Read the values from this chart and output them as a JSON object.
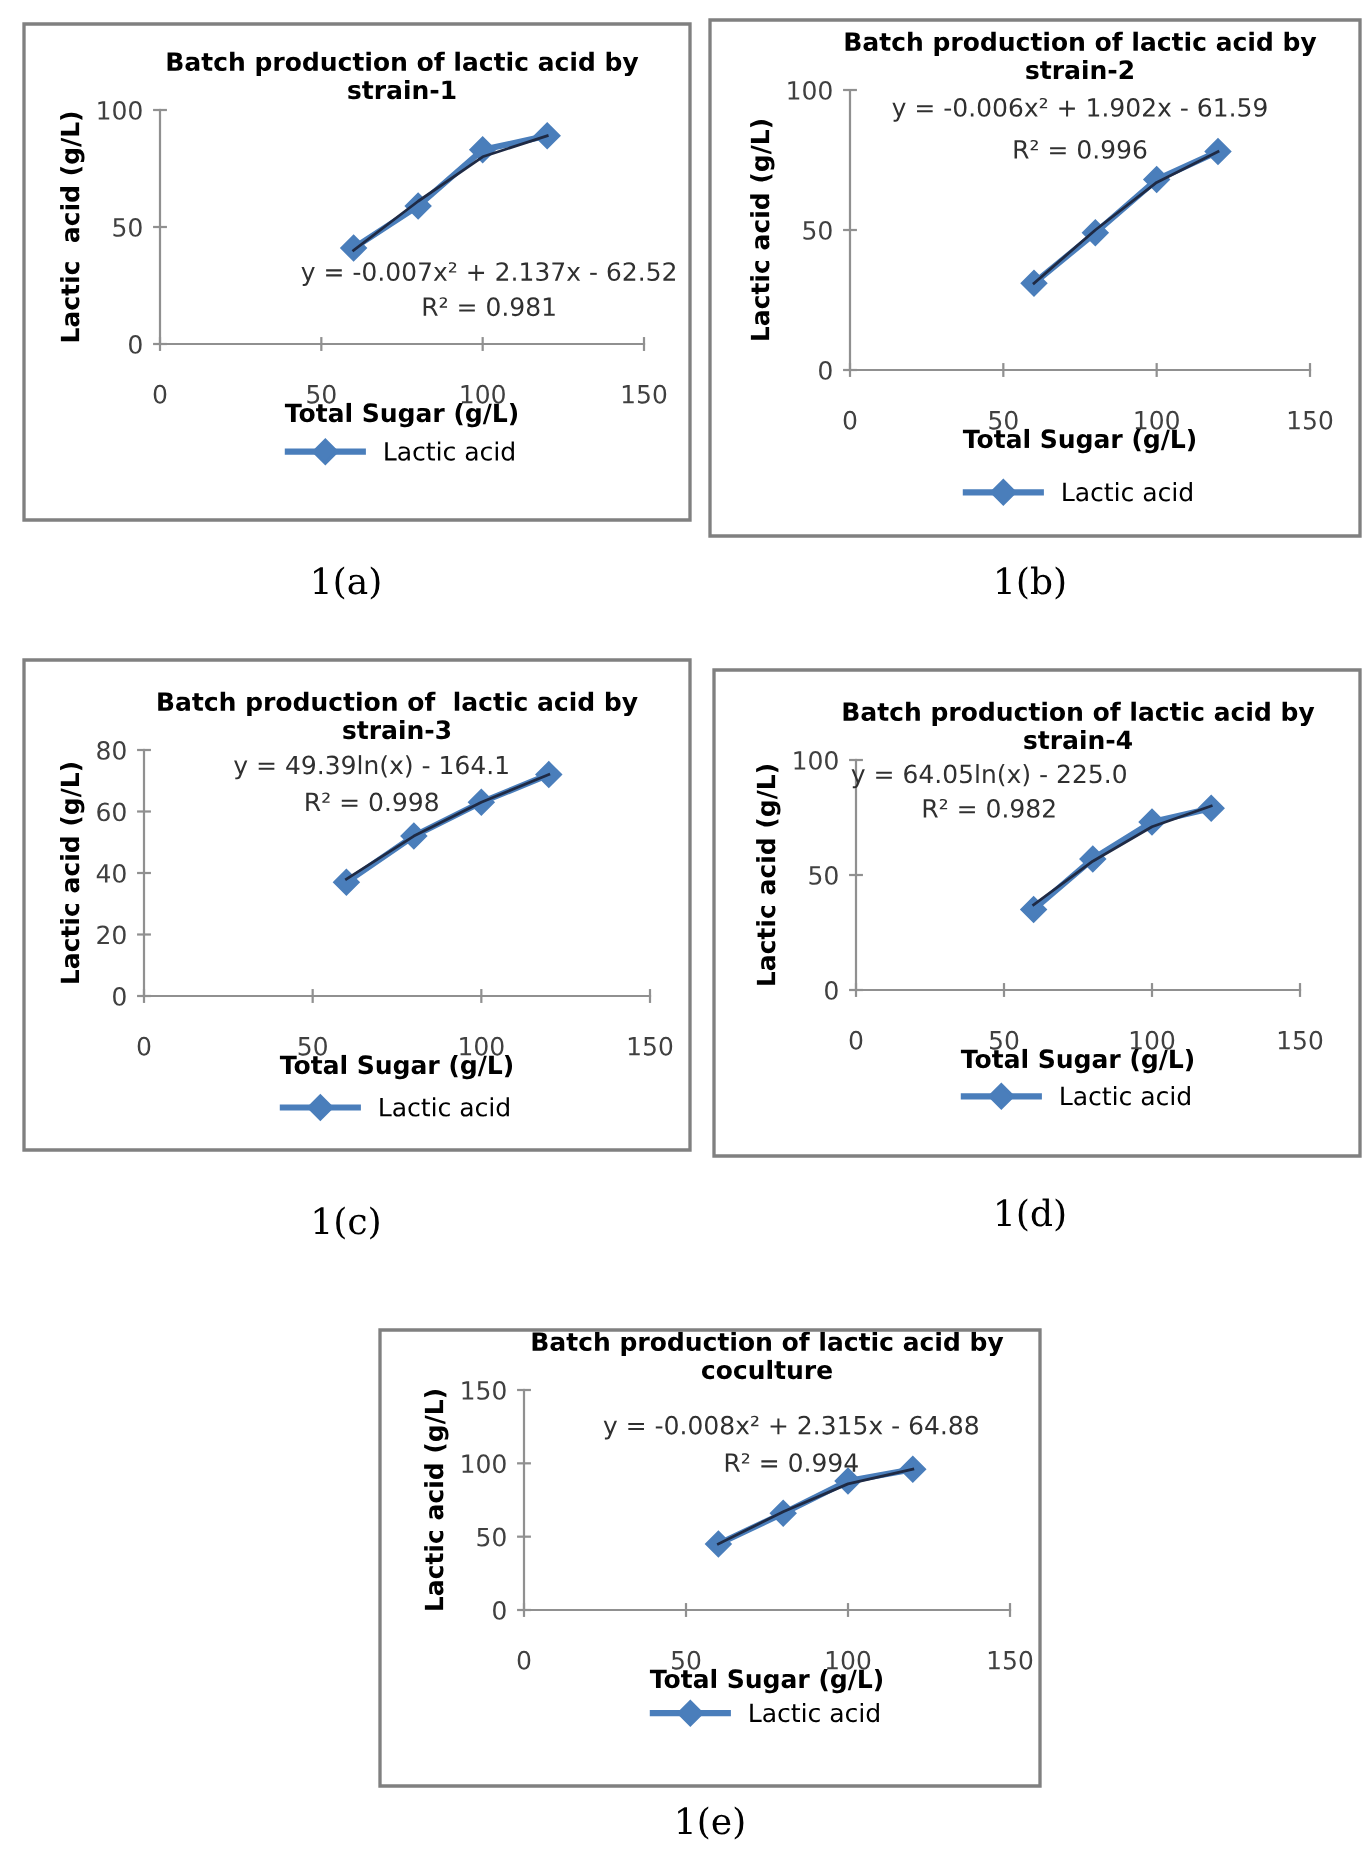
{
  "chart_data": [
    {
      "type": "line",
      "title": "Batch production of lactic acid by\nstrain-1",
      "xlabel": "Total Sugar (g/L)",
      "ylabel": "Lactic  acid (g/L)",
      "xlim": [
        0,
        150
      ],
      "xticks": [
        0,
        50,
        100,
        150
      ],
      "ylim": [
        0,
        100
      ],
      "yticks": [
        0,
        50,
        100
      ],
      "grid": false,
      "legend": "bottom",
      "annotations": [
        "y = -0.007x² + 2.137x - 62.52",
        "R² = 0.981",
        "1(a)"
      ],
      "series": [
        {
          "name": "Lactic acid",
          "color": "#4a7ebb",
          "marker": "diamond",
          "x": [
            60,
            80,
            100,
            120
          ],
          "values": [
            41,
            59,
            83,
            89
          ]
        },
        {
          "type": "line",
          "color": "#1f2a44",
          "marker": "none",
          "x": [
            60,
            80,
            100,
            120
          ],
          "values": [
            40,
            61,
            80,
            89
          ]
        }
      ]
    },
    {
      "type": "line",
      "title": "Batch production of lactic acid by\nstrain-2",
      "xlabel": "Total Sugar (g/L)",
      "ylabel": "Lactic acid (g/L)",
      "xlim": [
        0,
        150
      ],
      "xticks": [
        0,
        50,
        100,
        150
      ],
      "ylim": [
        0,
        100
      ],
      "yticks": [
        0,
        50,
        100
      ],
      "grid": false,
      "legend": "bottom",
      "annotations": [
        "y = -0.006x² + 1.902x - 61.59",
        "R² = 0.996",
        "1(b)"
      ],
      "series": [
        {
          "name": "Lactic acid",
          "color": "#4a7ebb",
          "marker": "diamond",
          "x": [
            60,
            80,
            100,
            120
          ],
          "values": [
            31,
            49,
            68,
            78
          ]
        },
        {
          "type": "line",
          "color": "#1f2a44",
          "marker": "none",
          "x": [
            60,
            80,
            100,
            120
          ],
          "values": [
            31,
            50,
            67,
            78
          ]
        }
      ]
    },
    {
      "type": "line",
      "title": "Batch production of  lactic acid by\nstrain-3",
      "xlabel": "Total Sugar (g/L)",
      "ylabel": "Lactic acid (g/L)",
      "xlim": [
        0,
        150
      ],
      "xticks": [
        0,
        50,
        100,
        150
      ],
      "ylim": [
        0,
        80
      ],
      "yticks": [
        0,
        20,
        40,
        60,
        80
      ],
      "grid": false,
      "legend": "bottom",
      "annotations": [
        "y = 49.39ln(x) - 164.1",
        "R² = 0.998",
        "1(c)"
      ],
      "series": [
        {
          "name": "Lactic acid",
          "color": "#4a7ebb",
          "marker": "diamond",
          "x": [
            60,
            80,
            100,
            120
          ],
          "values": [
            37,
            52,
            63,
            72
          ]
        },
        {
          "type": "line",
          "color": "#1f2a44",
          "marker": "none",
          "x": [
            60,
            80,
            100,
            120
          ],
          "values": [
            38,
            52,
            63,
            72
          ]
        }
      ]
    },
    {
      "type": "line",
      "title": "Batch production of lactic acid by\nstrain-4",
      "xlabel": "Total Sugar (g/L)",
      "ylabel": "Lactic acid (g/L)",
      "xlim": [
        0,
        150
      ],
      "xticks": [
        0,
        50,
        100,
        150
      ],
      "ylim": [
        0,
        100
      ],
      "yticks": [
        0,
        50,
        100
      ],
      "grid": false,
      "legend": "bottom",
      "annotations": [
        "y = 64.05ln(x) - 225.0",
        "R² = 0.982",
        "1(d)"
      ],
      "series": [
        {
          "name": "Lactic acid",
          "color": "#4a7ebb",
          "marker": "diamond",
          "x": [
            60,
            80,
            100,
            120
          ],
          "values": [
            35,
            57,
            73,
            79
          ]
        },
        {
          "type": "line",
          "color": "#1f2a44",
          "marker": "none",
          "x": [
            60,
            80,
            100,
            120
          ],
          "values": [
            37,
            56,
            71,
            80
          ]
        }
      ]
    },
    {
      "type": "line",
      "title": "Batch production of lactic acid by\ncoculture",
      "xlabel": "Total Sugar (g/L)",
      "ylabel": "Lactic acid (g/L)",
      "xlim": [
        0,
        150
      ],
      "xticks": [
        0,
        50,
        100,
        150
      ],
      "ylim": [
        0,
        150
      ],
      "yticks": [
        0,
        50,
        100,
        150
      ],
      "grid": false,
      "legend": "bottom",
      "annotations": [
        "y = -0.008x² + 2.315x - 64.88",
        "R² = 0.994",
        "1(e)"
      ],
      "series": [
        {
          "name": "Lactic acid",
          "color": "#4a7ebb",
          "marker": "diamond",
          "x": [
            60,
            80,
            100,
            120
          ],
          "values": [
            45,
            66,
            88,
            96
          ]
        },
        {
          "type": "line",
          "color": "#1f2a44",
          "marker": "none",
          "x": [
            60,
            80,
            100,
            120
          ],
          "values": [
            45,
            67,
            86,
            96
          ]
        }
      ]
    }
  ]
}
